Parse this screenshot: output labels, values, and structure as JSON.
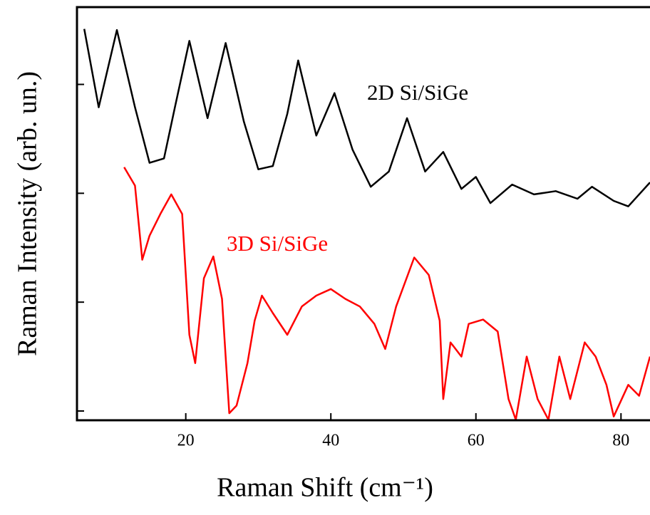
{
  "chart_data": {
    "type": "line",
    "xlabel": "Raman Shift (cm⁻¹)",
    "ylabel": "Raman Intensity (arb. un.)",
    "xlim": [
      5,
      84
    ],
    "xticks": [
      20,
      40,
      60,
      80
    ],
    "ylim": [
      -0.085,
      3.71
    ],
    "yticks": [
      0,
      1,
      2,
      3
    ],
    "series": [
      {
        "name": "2D Si/SiGe",
        "color": "#000000",
        "x": [
          6,
          8,
          10.5,
          13,
          15,
          17,
          18.5,
          20.5,
          23,
          25.5,
          28,
          30,
          32,
          34,
          35.5,
          38,
          40.5,
          43,
          45.5,
          48,
          50.5,
          53,
          55.5,
          58,
          60,
          62,
          65,
          68,
          71,
          74,
          76,
          79,
          81,
          84
        ],
        "values": [
          3.51,
          2.79,
          3.5,
          2.79,
          2.28,
          2.32,
          2.79,
          3.4,
          2.69,
          3.38,
          2.66,
          2.22,
          2.25,
          2.73,
          3.22,
          2.53,
          2.92,
          2.4,
          2.06,
          2.2,
          2.69,
          2.2,
          2.38,
          2.04,
          2.15,
          1.91,
          2.08,
          1.99,
          2.02,
          1.95,
          2.06,
          1.93,
          1.88,
          2.1
        ]
      },
      {
        "name": "3D Si/SiGe",
        "color": "#ff0000",
        "x": [
          11.5,
          13,
          14,
          15,
          16.5,
          18,
          19.5,
          20.5,
          21.3,
          22.5,
          23.8,
          25,
          25.5,
          26,
          27,
          28.5,
          29.5,
          30.5,
          32,
          34,
          36,
          38,
          40,
          42,
          44,
          46,
          47.5,
          49,
          51.5,
          53.5,
          55,
          55.5,
          56.5,
          58,
          59,
          61,
          63,
          64.5,
          65.5,
          67,
          68.5,
          70,
          71.5,
          73,
          75,
          76.5,
          78,
          79,
          81,
          82.5,
          84
        ],
        "values": [
          2.24,
          2.07,
          1.39,
          1.61,
          1.81,
          1.99,
          1.81,
          0.7,
          0.44,
          1.22,
          1.42,
          1.03,
          0.5,
          -0.02,
          0.05,
          0.44,
          0.83,
          1.06,
          0.9,
          0.7,
          0.96,
          1.06,
          1.12,
          1.03,
          0.96,
          0.8,
          0.57,
          0.96,
          1.41,
          1.25,
          0.83,
          0.11,
          0.63,
          0.5,
          0.8,
          0.84,
          0.73,
          0.11,
          -0.08,
          0.5,
          0.11,
          -0.08,
          0.5,
          0.11,
          0.63,
          0.5,
          0.24,
          -0.05,
          0.24,
          0.14,
          0.5
        ]
      }
    ]
  }
}
